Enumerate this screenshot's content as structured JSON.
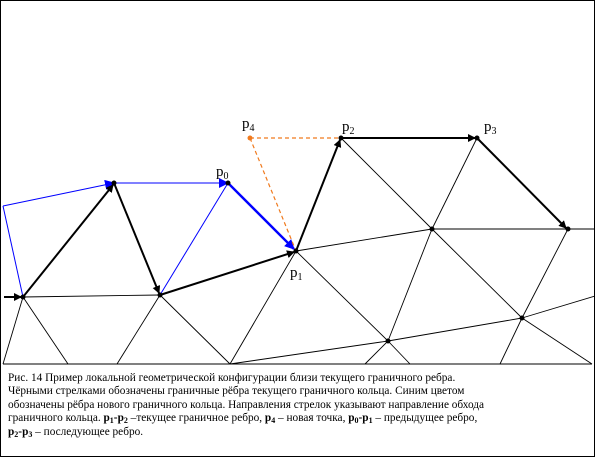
{
  "labels": {
    "p0": {
      "base": "p",
      "sub": "0"
    },
    "p1": {
      "base": "p",
      "sub": "1"
    },
    "p2": {
      "base": "p",
      "sub": "2"
    },
    "p3": {
      "base": "p",
      "sub": "3"
    },
    "p4": {
      "base": "p",
      "sub": "4"
    }
  },
  "caption": {
    "line1": "Рис. 14 Пример локальной геометрической конфигурации близи текущего граничного ребра.",
    "line2": "Чёрными стрелками обозначены граничные рёбра текущего граничного кольца. Синим цветом",
    "line3": "обозначены рёбра нового граничного кольца. Направления стрелок указывают направление обхода",
    "line4_a": "граничного кольца. ",
    "line4_b": "p",
    "line4_b_sub": "1",
    "line4_c": "-",
    "line4_d": "p",
    "line4_d_sub": "2",
    "line4_e": " –текущее граничное ребро, ",
    "line4_f": "p",
    "line4_f_sub": "4",
    "line4_g": " – новая точка, ",
    "line4_h": "p",
    "line4_h_sub": "0",
    "line4_i": "-",
    "line4_j": "p",
    "line4_j_sub": "1",
    "line4_k": " – предыдущее ребро,",
    "line5_a": "p",
    "line5_a_sub": "2",
    "line5_b": "-",
    "line5_c": "p",
    "line5_c_sub": "3",
    "line5_d": " – последующее ребро."
  },
  "colors": {
    "boundary": "#000000",
    "new_ring": "#0000ff",
    "new_point": "#f07a1e"
  }
}
